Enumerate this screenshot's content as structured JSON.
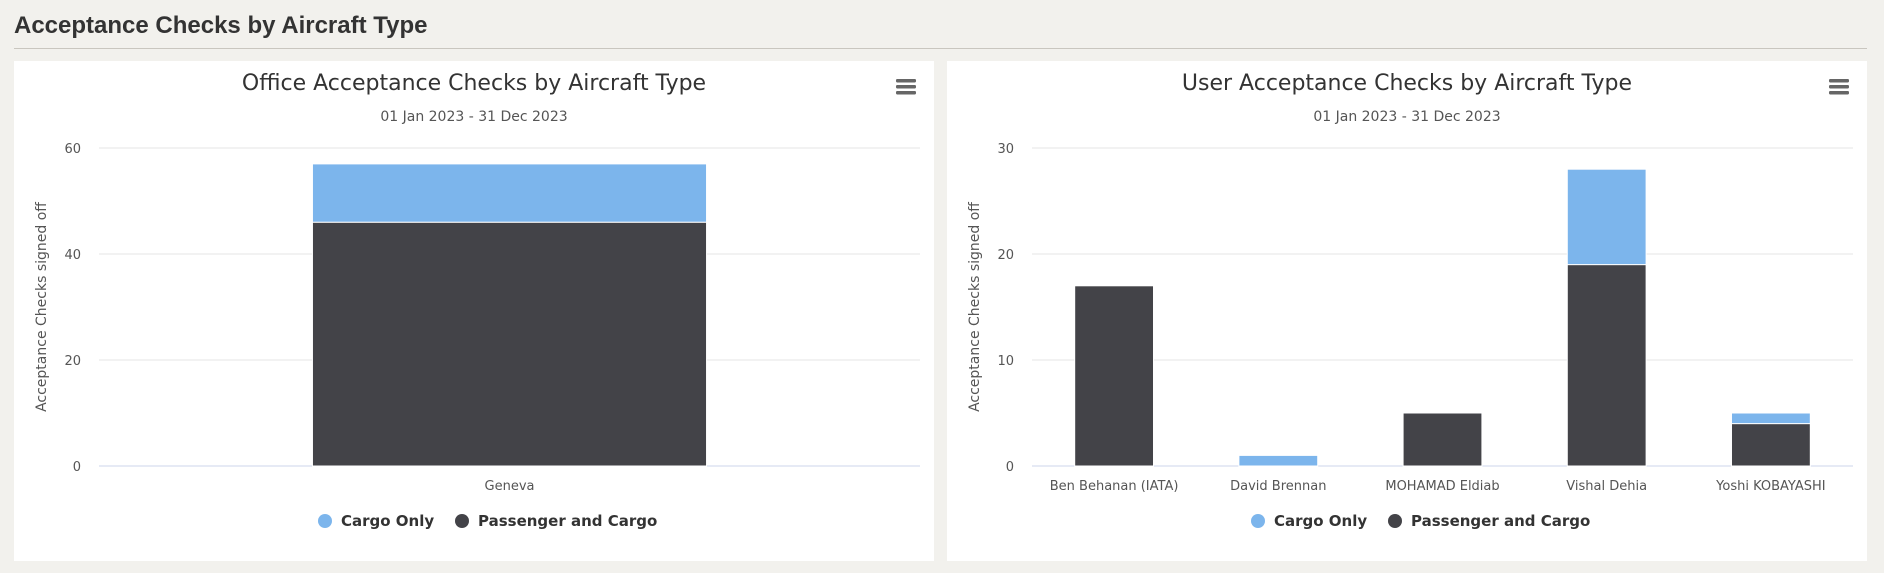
{
  "page": {
    "title": "Acceptance Checks by Aircraft Type"
  },
  "colors": {
    "cargo_only": "#7cb5ec",
    "passenger_and_cargo": "#434348"
  },
  "chart_data": [
    {
      "type": "bar",
      "stacked": true,
      "title": "Office Acceptance Checks by Aircraft Type",
      "subtitle": "01 Jan 2023 - 31 Dec 2023",
      "xlabel": "",
      "ylabel": "Acceptance Checks signed off",
      "ylim": [
        0,
        60
      ],
      "yticks": [
        0,
        20,
        40,
        60
      ],
      "categories": [
        "Geneva"
      ],
      "series": [
        {
          "name": "Cargo Only",
          "values": [
            11
          ],
          "color": "#7cb5ec"
        },
        {
          "name": "Passenger and Cargo",
          "values": [
            46
          ],
          "color": "#434348"
        }
      ],
      "legend": "bottom-center",
      "grid": true
    },
    {
      "type": "bar",
      "stacked": true,
      "title": "User Acceptance Checks by Aircraft Type",
      "subtitle": "01 Jan 2023 - 31 Dec 2023",
      "xlabel": "",
      "ylabel": "Acceptance Checks signed off",
      "ylim": [
        0,
        30
      ],
      "yticks": [
        0,
        10,
        20,
        30
      ],
      "categories": [
        "Ben Behanan (IATA)",
        "David Brennan",
        "MOHAMAD Eldiab",
        "Vishal Dehia",
        "Yoshi KOBAYASHI"
      ],
      "series": [
        {
          "name": "Cargo Only",
          "values": [
            0,
            1,
            0,
            9,
            1
          ],
          "color": "#7cb5ec"
        },
        {
          "name": "Passenger and Cargo",
          "values": [
            17,
            0,
            5,
            19,
            4
          ],
          "color": "#434348"
        }
      ],
      "legend": "bottom-center",
      "grid": true
    }
  ]
}
